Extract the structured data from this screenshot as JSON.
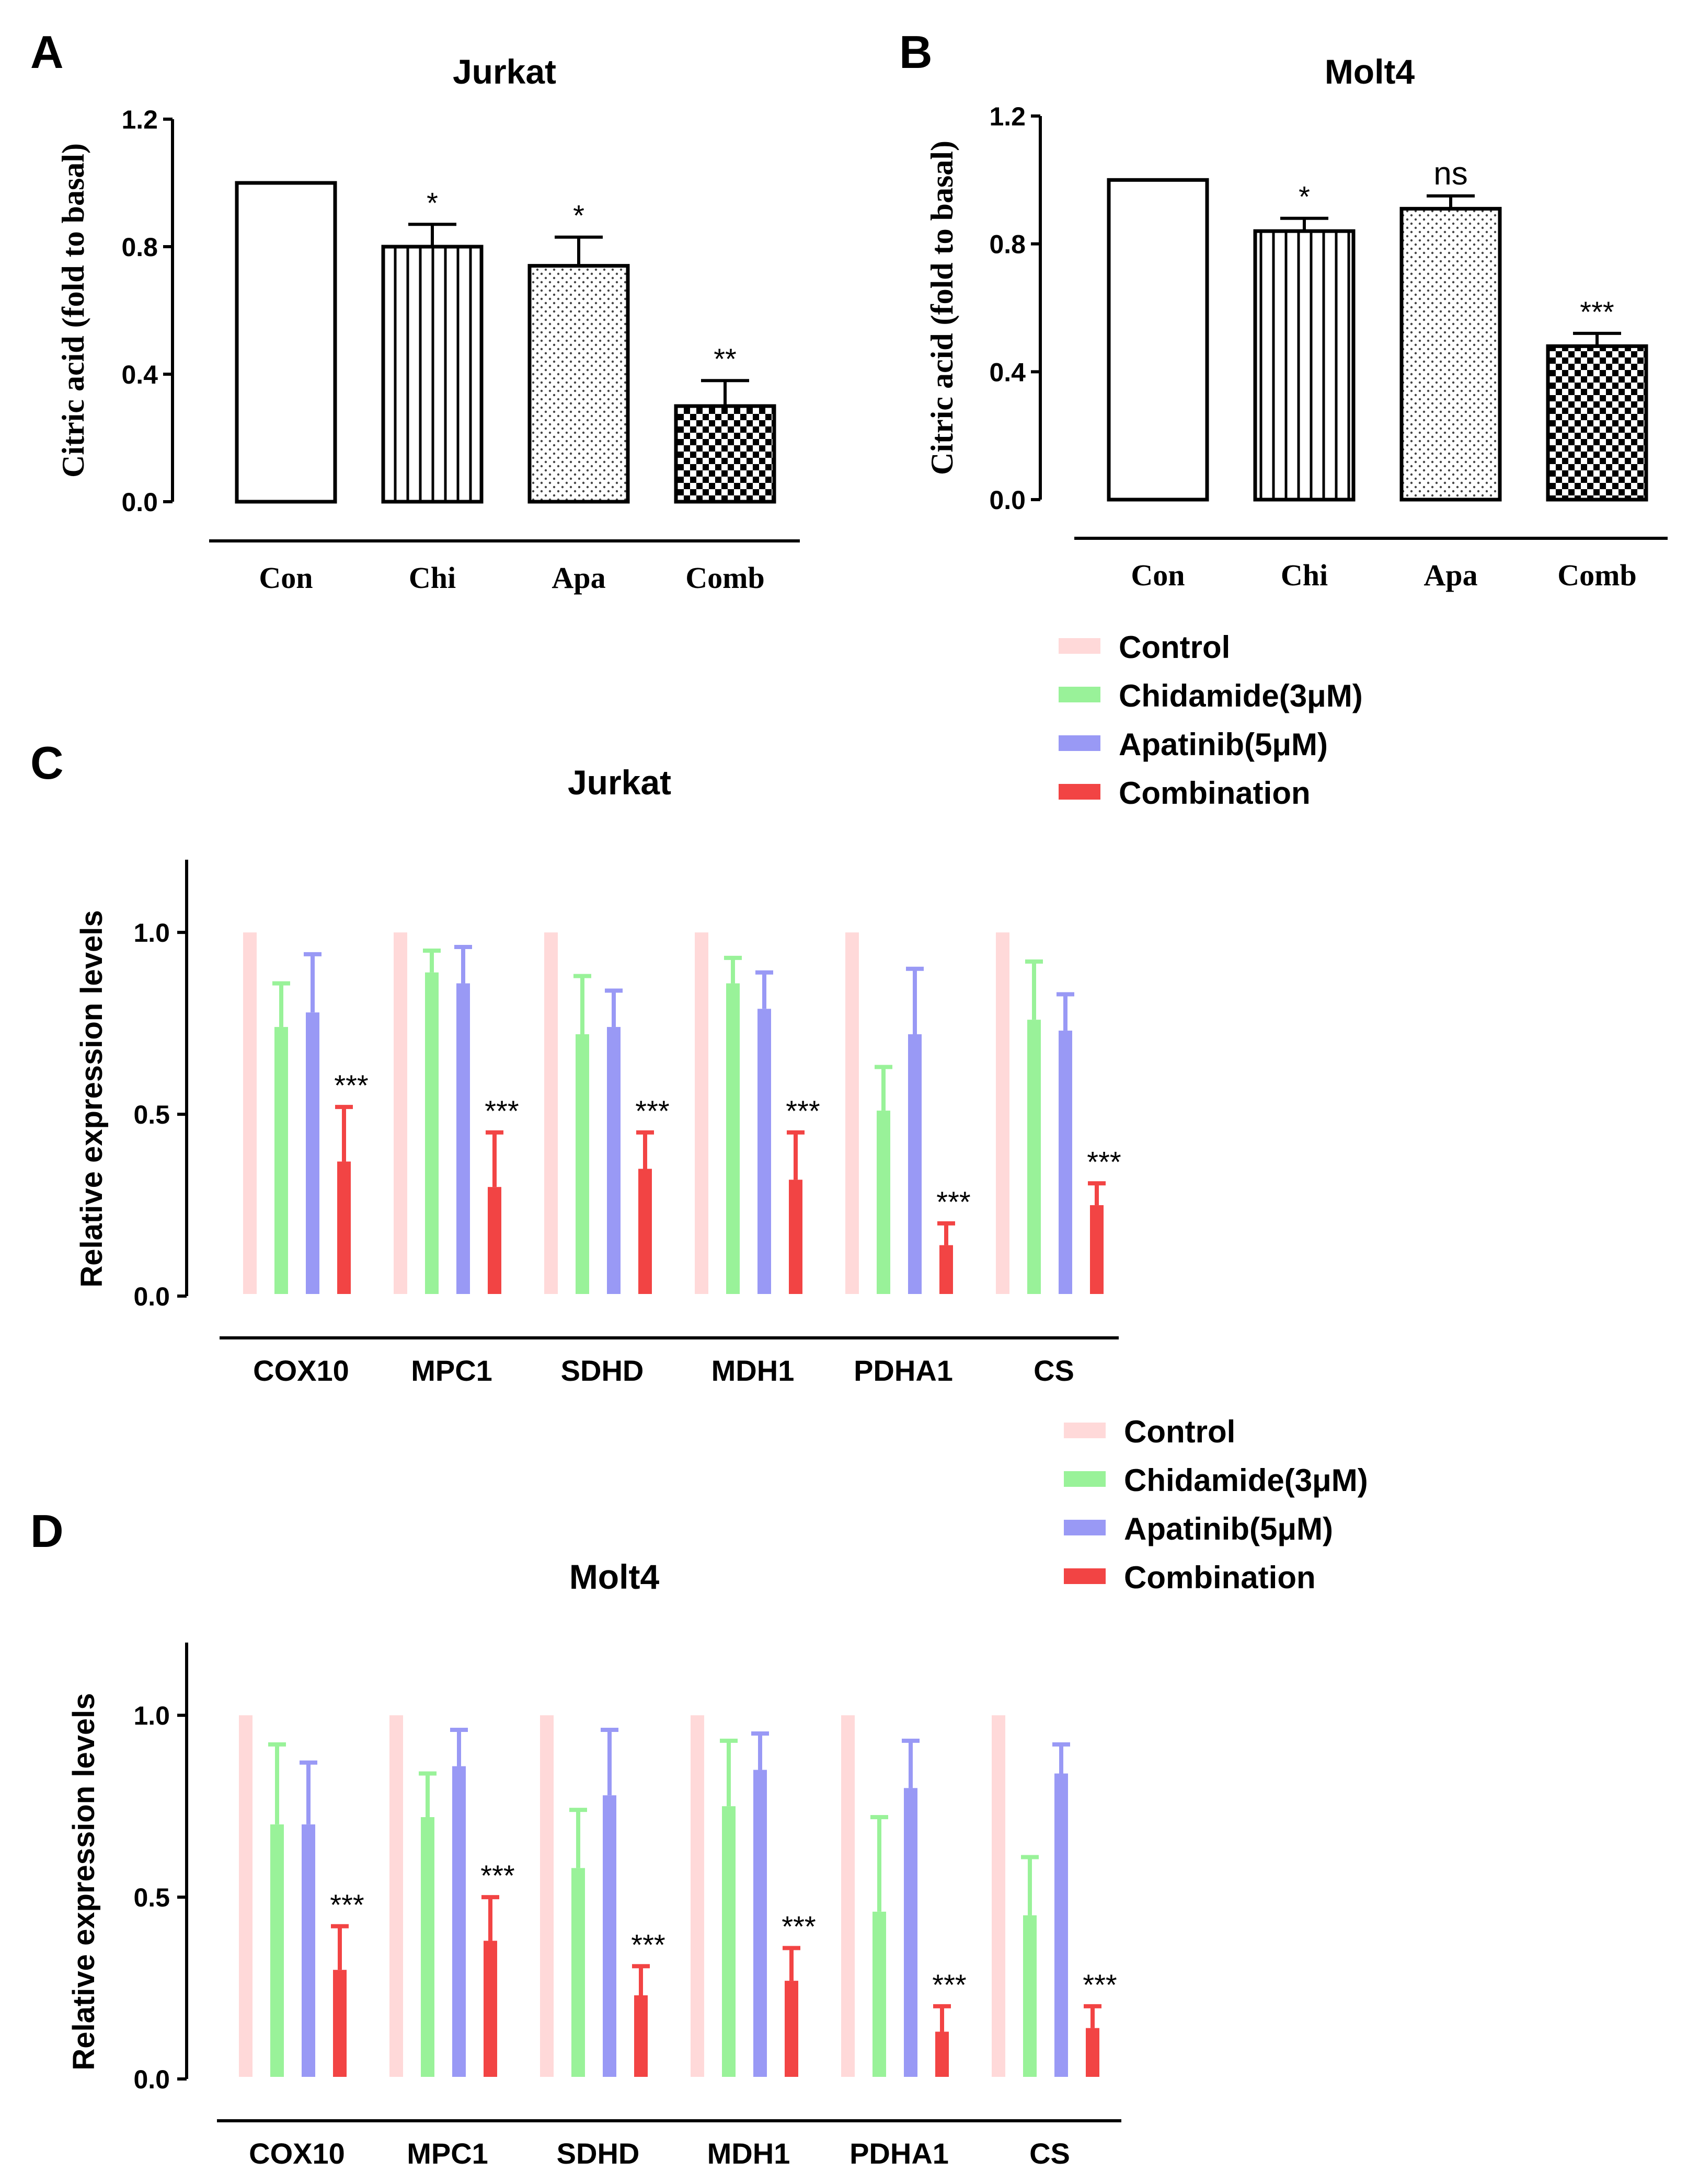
{
  "panel_labels": [
    "A",
    "B",
    "C",
    "D"
  ],
  "chart_data": [
    {
      "type": "bar",
      "panel": "A",
      "title": "Jurkat",
      "xlabel": "",
      "ylabel": "Citric acid (fold to basal)",
      "ylim": [
        0,
        1.2
      ],
      "yticks": [
        "0.0",
        "0.4",
        "0.8",
        "1.2"
      ],
      "categories": [
        "Con",
        "Chi",
        "Apa",
        "Comb"
      ],
      "values": [
        1.0,
        0.8,
        0.74,
        0.3
      ],
      "errors": [
        0,
        0.07,
        0.09,
        0.08
      ],
      "patterns": [
        "empty",
        "vertical-lines",
        "dots",
        "checker"
      ],
      "significance": [
        "",
        "*",
        "*",
        "**"
      ]
    },
    {
      "type": "bar",
      "panel": "B",
      "title": "Molt4",
      "xlabel": "",
      "ylabel": "Citric acid (fold to basal)",
      "ylim": [
        0,
        1.2
      ],
      "yticks": [
        "0.0",
        "0.4",
        "0.8",
        "1.2"
      ],
      "categories": [
        "Con",
        "Chi",
        "Apa",
        "Comb"
      ],
      "values": [
        1.0,
        0.84,
        0.91,
        0.48
      ],
      "errors": [
        0,
        0.04,
        0.04,
        0.04
      ],
      "patterns": [
        "empty",
        "vertical-lines",
        "dots",
        "checker"
      ],
      "significance": [
        "",
        "*",
        "ns",
        "***"
      ]
    },
    {
      "type": "bar",
      "panel": "C",
      "title": "Jurkat",
      "xlabel": "",
      "ylabel": "Relative expression levels",
      "ylim": [
        0,
        1.2
      ],
      "yticks": [
        "0.0",
        "0.5",
        "1.0"
      ],
      "categories": [
        "COX10",
        "MPC1",
        "SDHD",
        "MDH1",
        "PDHA1",
        "CS"
      ],
      "series": [
        {
          "name": "Control",
          "color": "#FFD9D9",
          "values": [
            1.0,
            1.0,
            1.0,
            1.0,
            1.0,
            1.0
          ],
          "errors": [
            0,
            0,
            0,
            0,
            0,
            0
          ]
        },
        {
          "name": "Chidamide(3μM)",
          "color": "#99F299",
          "values": [
            0.74,
            0.89,
            0.72,
            0.86,
            0.51,
            0.76
          ],
          "errors": [
            0.12,
            0.06,
            0.16,
            0.07,
            0.12,
            0.16
          ]
        },
        {
          "name": "Apatinib(5μM)",
          "color": "#9999F5",
          "values": [
            0.78,
            0.86,
            0.74,
            0.79,
            0.72,
            0.73
          ],
          "errors": [
            0.16,
            0.1,
            0.1,
            0.1,
            0.18,
            0.1
          ]
        },
        {
          "name": "Combination",
          "color": "#F24444",
          "values": [
            0.37,
            0.3,
            0.35,
            0.32,
            0.14,
            0.25
          ],
          "errors": [
            0.15,
            0.15,
            0.1,
            0.13,
            0.06,
            0.06
          ]
        }
      ],
      "significance": [
        "***",
        "***",
        "***",
        "***",
        "***",
        "***"
      ]
    },
    {
      "type": "bar",
      "panel": "D",
      "title": "Molt4",
      "xlabel": "",
      "ylabel": "Relative expression levels",
      "ylim": [
        0,
        1.2
      ],
      "yticks": [
        "0.0",
        "0.5",
        "1.0"
      ],
      "categories": [
        "COX10",
        "MPC1",
        "SDHD",
        "MDH1",
        "PDHA1",
        "CS"
      ],
      "series": [
        {
          "name": "Control",
          "color": "#FFD9D9",
          "values": [
            1.0,
            1.0,
            1.0,
            1.0,
            1.0,
            1.0
          ],
          "errors": [
            0,
            0,
            0,
            0,
            0,
            0
          ]
        },
        {
          "name": "Chidamide(3μM)",
          "color": "#99F299",
          "values": [
            0.7,
            0.72,
            0.58,
            0.75,
            0.46,
            0.45
          ],
          "errors": [
            0.22,
            0.12,
            0.16,
            0.18,
            0.26,
            0.16
          ]
        },
        {
          "name": "Apatinib(5μM)",
          "color": "#9999F5",
          "values": [
            0.7,
            0.86,
            0.78,
            0.85,
            0.8,
            0.84
          ],
          "errors": [
            0.17,
            0.1,
            0.18,
            0.1,
            0.13,
            0.08
          ]
        },
        {
          "name": "Combination",
          "color": "#F24444",
          "values": [
            0.3,
            0.38,
            0.23,
            0.27,
            0.13,
            0.14
          ],
          "errors": [
            0.12,
            0.12,
            0.08,
            0.09,
            0.07,
            0.06
          ]
        }
      ],
      "significance": [
        "***",
        "***",
        "***",
        "***",
        "***",
        "***"
      ]
    }
  ]
}
